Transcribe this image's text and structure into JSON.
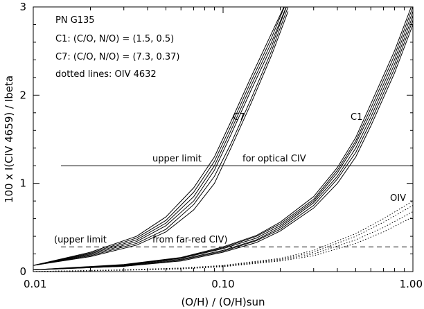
{
  "chart_data": {
    "type": "line",
    "xlabel": "(O/H) / (O/H)sun",
    "ylabel": "100 x I(CIV 4659) / Ibeta",
    "xscale": "log",
    "xlim": [
      0.01,
      1.0
    ],
    "ylim": [
      0,
      3
    ],
    "x_ticks": [
      0.01,
      0.1,
      1.0
    ],
    "x_tick_labels": [
      "0.01",
      "0.10",
      "1.00"
    ],
    "y_ticks": [
      0,
      1,
      2,
      3
    ],
    "y_tick_labels": [
      "0",
      "1",
      "2",
      "3"
    ],
    "annotations": {
      "object": "PN G135",
      "c1_def": "C1: (C/O, N/O) = (1.5, 0.5)",
      "c7_def": "C7: (C/O, N/O) = (7.3, 0.37)",
      "dotted_note": "dotted lines: OIV 4632",
      "c7_label": "C7",
      "c1_label": "C1",
      "oiv_label": "OIV",
      "optical_upper_a": "upper limit",
      "optical_upper_b": "for optical CIV",
      "farred_upper_a": "(upper limit",
      "farred_upper_b": "from far-red CIV)"
    },
    "reference_lines": [
      {
        "name": "upper limit for optical CIV",
        "style": "solid",
        "y": 1.2,
        "x_range": [
          0.014,
          1.0
        ]
      },
      {
        "name": "upper limit from far-red CIV",
        "style": "dashed",
        "y": 0.28,
        "x_range": [
          0.014,
          1.0
        ]
      }
    ],
    "groups": [
      {
        "name": "C7",
        "style": "solid",
        "series": [
          {
            "x": [
              0.01,
              0.02,
              0.035,
              0.05,
              0.07,
              0.09,
              0.11,
              0.14,
              0.18,
              0.22
            ],
            "y": [
              0.07,
              0.2,
              0.36,
              0.55,
              0.85,
              1.2,
              1.6,
              2.1,
              2.6,
              3.05
            ]
          },
          {
            "x": [
              0.01,
              0.02,
              0.035,
              0.05,
              0.07,
              0.09,
              0.11,
              0.14,
              0.18,
              0.22
            ],
            "y": [
              0.07,
              0.18,
              0.32,
              0.48,
              0.76,
              1.08,
              1.45,
              1.95,
              2.5,
              3.0
            ]
          },
          {
            "x": [
              0.01,
              0.02,
              0.035,
              0.05,
              0.07,
              0.09,
              0.11,
              0.14,
              0.18,
              0.22
            ],
            "y": [
              0.07,
              0.22,
              0.4,
              0.62,
              0.95,
              1.3,
              1.7,
              2.2,
              2.7,
              3.1
            ]
          },
          {
            "x": [
              0.01,
              0.02,
              0.035,
              0.05,
              0.07,
              0.09,
              0.11,
              0.14,
              0.18,
              0.22
            ],
            "y": [
              0.07,
              0.17,
              0.3,
              0.45,
              0.7,
              1.0,
              1.4,
              1.9,
              2.45,
              2.95
            ]
          },
          {
            "x": [
              0.01,
              0.02,
              0.035,
              0.05,
              0.07,
              0.09,
              0.11,
              0.14,
              0.18,
              0.22
            ],
            "y": [
              0.07,
              0.19,
              0.34,
              0.52,
              0.8,
              1.15,
              1.55,
              2.05,
              2.55,
              3.05
            ]
          },
          {
            "x": [
              0.01,
              0.02,
              0.035,
              0.05,
              0.07,
              0.09,
              0.11,
              0.14,
              0.18,
              0.22
            ],
            "y": [
              0.07,
              0.21,
              0.38,
              0.58,
              0.9,
              1.25,
              1.65,
              2.15,
              2.65,
              3.1
            ]
          }
        ]
      },
      {
        "name": "C1",
        "style": "solid",
        "series": [
          {
            "x": [
              0.01,
              0.03,
              0.06,
              0.1,
              0.15,
              0.2,
              0.3,
              0.4,
              0.5,
              0.6,
              0.8,
              1.0
            ],
            "y": [
              0.02,
              0.07,
              0.15,
              0.26,
              0.38,
              0.52,
              0.8,
              1.12,
              1.45,
              1.8,
              2.4,
              2.95
            ]
          },
          {
            "x": [
              0.01,
              0.03,
              0.06,
              0.1,
              0.15,
              0.2,
              0.3,
              0.4,
              0.5,
              0.6,
              0.8,
              1.0
            ],
            "y": [
              0.02,
              0.06,
              0.13,
              0.23,
              0.35,
              0.48,
              0.75,
              1.05,
              1.35,
              1.7,
              2.3,
              2.85
            ]
          },
          {
            "x": [
              0.01,
              0.03,
              0.06,
              0.1,
              0.15,
              0.2,
              0.3,
              0.4,
              0.5,
              0.6,
              0.8,
              1.0
            ],
            "y": [
              0.02,
              0.08,
              0.16,
              0.28,
              0.41,
              0.56,
              0.85,
              1.18,
              1.52,
              1.9,
              2.5,
              3.05
            ]
          },
          {
            "x": [
              0.01,
              0.03,
              0.06,
              0.1,
              0.15,
              0.2,
              0.3,
              0.4,
              0.5,
              0.6,
              0.8,
              1.0
            ],
            "y": [
              0.02,
              0.065,
              0.14,
              0.24,
              0.36,
              0.5,
              0.78,
              1.08,
              1.4,
              1.75,
              2.35,
              2.9
            ]
          },
          {
            "x": [
              0.01,
              0.03,
              0.06,
              0.1,
              0.15,
              0.2,
              0.3,
              0.4,
              0.5,
              0.6,
              0.8,
              1.0
            ],
            "y": [
              0.02,
              0.075,
              0.155,
              0.27,
              0.4,
              0.54,
              0.82,
              1.15,
              1.48,
              1.85,
              2.45,
              3.0
            ]
          },
          {
            "x": [
              0.01,
              0.03,
              0.06,
              0.1,
              0.15,
              0.2,
              0.3,
              0.4,
              0.5,
              0.6,
              0.8,
              1.0
            ],
            "y": [
              0.02,
              0.06,
              0.12,
              0.22,
              0.33,
              0.46,
              0.72,
              1.0,
              1.3,
              1.65,
              2.25,
              2.8
            ]
          }
        ]
      },
      {
        "name": "OIV 4632",
        "style": "dotted",
        "series": [
          {
            "x": [
              0.01,
              0.03,
              0.06,
              0.1,
              0.2,
              0.3,
              0.5,
              0.7,
              1.0
            ],
            "y": [
              0.0,
              0.02,
              0.04,
              0.07,
              0.15,
              0.24,
              0.43,
              0.6,
              0.8
            ]
          },
          {
            "x": [
              0.01,
              0.03,
              0.06,
              0.1,
              0.2,
              0.3,
              0.5,
              0.7,
              1.0
            ],
            "y": [
              0.0,
              0.02,
              0.04,
              0.065,
              0.14,
              0.22,
              0.4,
              0.56,
              0.75
            ]
          },
          {
            "x": [
              0.01,
              0.03,
              0.06,
              0.1,
              0.2,
              0.3,
              0.5,
              0.7,
              1.0
            ],
            "y": [
              0.0,
              0.018,
              0.035,
              0.06,
              0.13,
              0.2,
              0.36,
              0.5,
              0.68
            ]
          },
          {
            "x": [
              0.01,
              0.03,
              0.06,
              0.1,
              0.2,
              0.3,
              0.5,
              0.7,
              1.0
            ],
            "y": [
              0.0,
              0.015,
              0.03,
              0.055,
              0.12,
              0.18,
              0.32,
              0.45,
              0.62
            ]
          }
        ]
      }
    ]
  }
}
